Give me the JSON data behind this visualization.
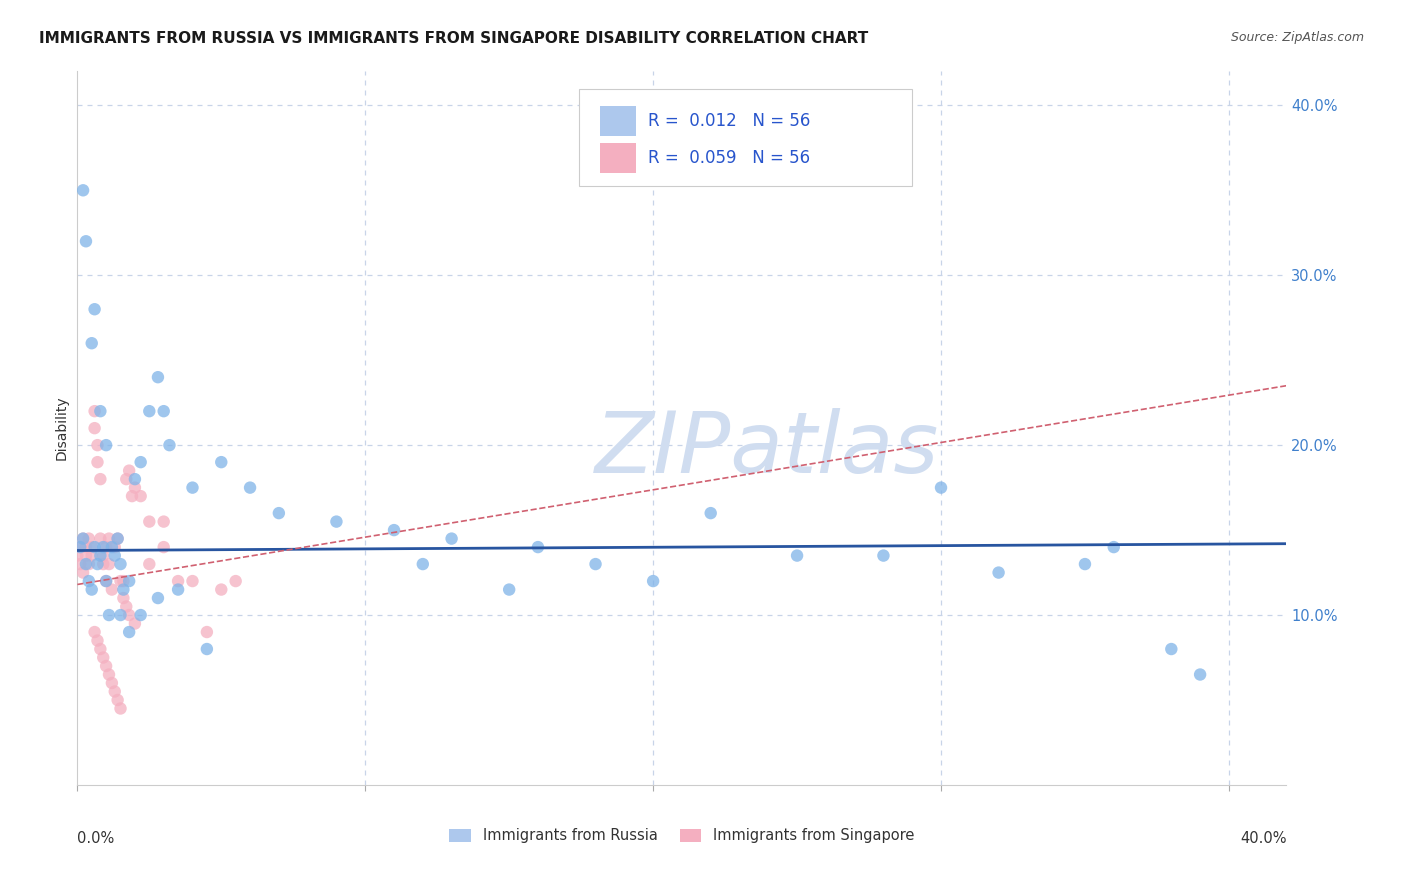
{
  "title": "IMMIGRANTS FROM RUSSIA VS IMMIGRANTS FROM SINGAPORE DISABILITY CORRELATION CHART",
  "source": "Source: ZipAtlas.com",
  "ylabel": "Disability",
  "legend_entries": [
    {
      "label": "Immigrants from Russia",
      "R": "0.012",
      "N": "56",
      "color": "#adc8ed"
    },
    {
      "label": "Immigrants from Singapore",
      "R": "0.059",
      "N": "56",
      "color": "#f4afc0"
    }
  ],
  "russia_x": [
    0.001,
    0.002,
    0.003,
    0.004,
    0.005,
    0.006,
    0.007,
    0.008,
    0.009,
    0.01,
    0.011,
    0.012,
    0.013,
    0.014,
    0.015,
    0.016,
    0.018,
    0.02,
    0.022,
    0.025,
    0.028,
    0.03,
    0.032,
    0.04,
    0.05,
    0.06,
    0.07,
    0.09,
    0.11,
    0.12,
    0.13,
    0.15,
    0.16,
    0.18,
    0.2,
    0.22,
    0.25,
    0.28,
    0.3,
    0.32,
    0.35,
    0.36,
    0.38,
    0.39,
    0.002,
    0.003,
    0.005,
    0.006,
    0.008,
    0.01,
    0.015,
    0.018,
    0.022,
    0.028,
    0.035,
    0.045
  ],
  "russia_y": [
    0.14,
    0.145,
    0.13,
    0.12,
    0.115,
    0.14,
    0.13,
    0.135,
    0.14,
    0.12,
    0.1,
    0.14,
    0.135,
    0.145,
    0.13,
    0.115,
    0.12,
    0.18,
    0.19,
    0.22,
    0.24,
    0.22,
    0.2,
    0.175,
    0.19,
    0.175,
    0.16,
    0.155,
    0.15,
    0.13,
    0.145,
    0.115,
    0.14,
    0.13,
    0.12,
    0.16,
    0.135,
    0.135,
    0.175,
    0.125,
    0.13,
    0.14,
    0.08,
    0.065,
    0.35,
    0.32,
    0.26,
    0.28,
    0.22,
    0.2,
    0.1,
    0.09,
    0.1,
    0.11,
    0.115,
    0.08
  ],
  "singapore_x": [
    0.0,
    0.001,
    0.001,
    0.002,
    0.002,
    0.003,
    0.003,
    0.004,
    0.004,
    0.005,
    0.005,
    0.006,
    0.006,
    0.007,
    0.007,
    0.008,
    0.008,
    0.009,
    0.009,
    0.01,
    0.01,
    0.011,
    0.011,
    0.012,
    0.013,
    0.014,
    0.015,
    0.016,
    0.017,
    0.018,
    0.019,
    0.02,
    0.022,
    0.025,
    0.03,
    0.035,
    0.04,
    0.045,
    0.05,
    0.055,
    0.006,
    0.007,
    0.008,
    0.009,
    0.01,
    0.011,
    0.012,
    0.013,
    0.014,
    0.015,
    0.016,
    0.017,
    0.018,
    0.02,
    0.025,
    0.03
  ],
  "singapore_y": [
    0.135,
    0.14,
    0.13,
    0.125,
    0.145,
    0.14,
    0.135,
    0.145,
    0.13,
    0.135,
    0.14,
    0.22,
    0.21,
    0.2,
    0.19,
    0.18,
    0.145,
    0.13,
    0.135,
    0.14,
    0.12,
    0.145,
    0.13,
    0.115,
    0.14,
    0.145,
    0.12,
    0.12,
    0.18,
    0.185,
    0.17,
    0.175,
    0.17,
    0.155,
    0.155,
    0.12,
    0.12,
    0.09,
    0.115,
    0.12,
    0.09,
    0.085,
    0.08,
    0.075,
    0.07,
    0.065,
    0.06,
    0.055,
    0.05,
    0.045,
    0.11,
    0.105,
    0.1,
    0.095,
    0.13,
    0.14
  ],
  "russia_color": "#7fb3e8",
  "singapore_color": "#f4afc0",
  "russia_line_color": "#2855a0",
  "singapore_line_color": "#d06070",
  "russia_line_start_y": 0.138,
  "russia_line_end_y": 0.142,
  "singapore_line_start_y": 0.118,
  "singapore_line_end_y": 0.235,
  "watermark_text": "ZIPatlas",
  "watermark_color": "#d0ddf0",
  "xlim": [
    0.0,
    0.42
  ],
  "ylim": [
    0.0,
    0.42
  ],
  "ytick_vals": [
    0.0,
    0.1,
    0.2,
    0.3,
    0.4
  ],
  "ytick_labels": [
    "",
    "10.0%",
    "20.0%",
    "30.0%",
    "40.0%"
  ],
  "grid_color": "#c8d4e8",
  "background_color": "#ffffff",
  "title_fontsize": 11,
  "source_fontsize": 9
}
